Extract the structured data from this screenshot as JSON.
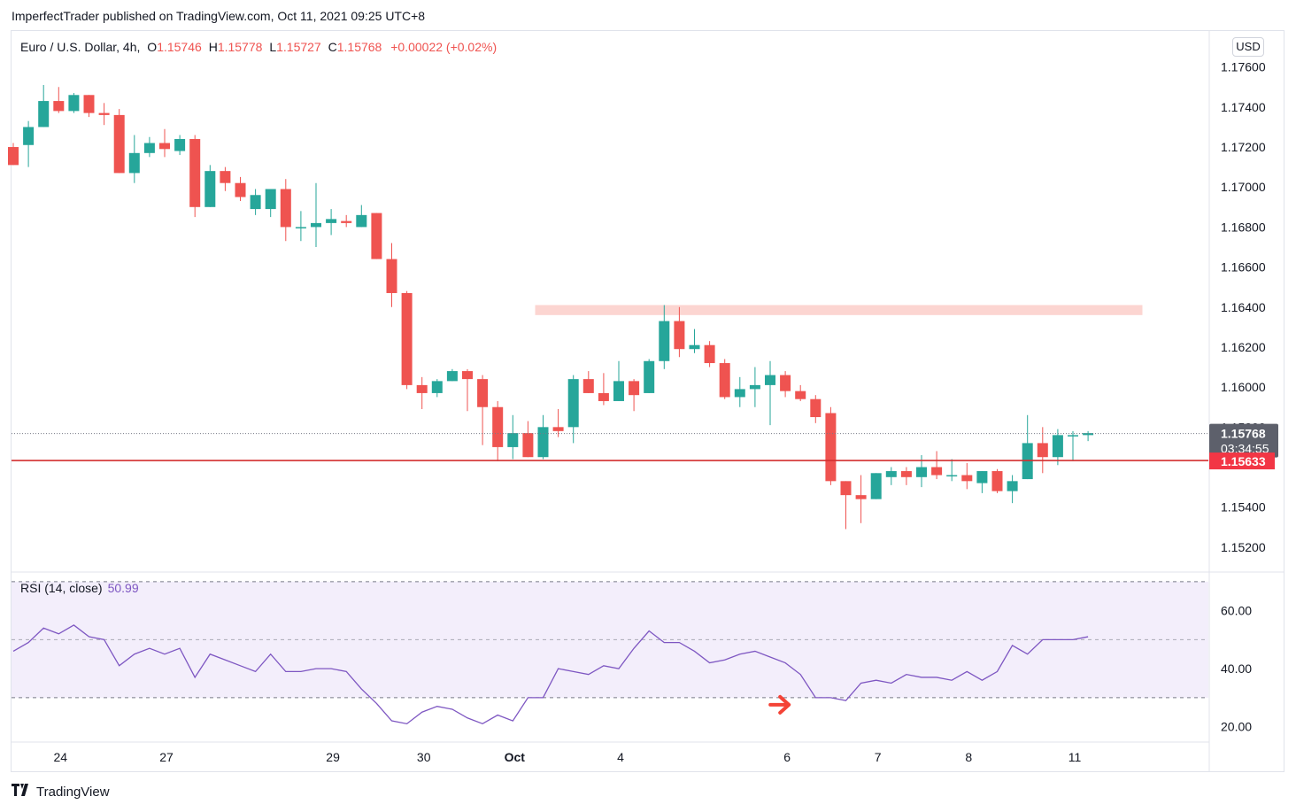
{
  "header": {
    "publisher_line": "ImperfectTrader published on TradingView.com, Oct 11, 2021 09:25 UTC+8"
  },
  "legend": {
    "symbol": "Euro / U.S. Dollar, 4h,",
    "open_label": "O",
    "open": "1.15746",
    "high_label": "H",
    "high": "1.15778",
    "low_label": "L",
    "low": "1.15727",
    "close_label": "C",
    "close": "1.15768",
    "change": "+0.00022 (+0.02%)"
  },
  "currency": "USD",
  "price_tags": {
    "last_price": "1.15768",
    "countdown": "03:34:55",
    "level": "1.15633",
    "hidden_tick": "1.15800"
  },
  "rsi_legend": {
    "label": "RSI (14, close)",
    "value": "50.99"
  },
  "footer": {
    "brand": "TradingView"
  },
  "colors": {
    "up": "#26a69a",
    "down": "#ef5350",
    "rsi": "#7e57c2",
    "rsi_band": "#f3eefb",
    "resistance_zone": "#fcd5d1",
    "support_line": "#d32f2f",
    "arrow": "#f44336"
  },
  "chart_data": [
    {
      "type": "candlestick",
      "title": "Euro / U.S. Dollar, 4h",
      "ylim": [
        1.1508,
        1.1778
      ],
      "y_ticks": [
        "1.17600",
        "1.17400",
        "1.17200",
        "1.17000",
        "1.16800",
        "1.16600",
        "1.16400",
        "1.16200",
        "1.16000",
        "1.15400",
        "1.15200"
      ],
      "x_ticks": [
        {
          "label": "24",
          "index": 3
        },
        {
          "label": "27",
          "index": 10
        },
        {
          "label": "29",
          "index": 21
        },
        {
          "label": "30",
          "index": 27
        },
        {
          "label": "Oct",
          "index": 33
        },
        {
          "label": "4",
          "index": 40
        },
        {
          "label": "6",
          "index": 51
        },
        {
          "label": "7",
          "index": 57
        },
        {
          "label": "8",
          "index": 63
        },
        {
          "label": "11",
          "index": 70
        }
      ],
      "candles": [
        {
          "o": 1.172,
          "h": 1.1722,
          "l": 1.1711,
          "c": 1.1711
        },
        {
          "o": 1.1721,
          "h": 1.1733,
          "l": 1.171,
          "c": 1.173
        },
        {
          "o": 1.173,
          "h": 1.1751,
          "l": 1.173,
          "c": 1.1743
        },
        {
          "o": 1.1743,
          "h": 1.175,
          "l": 1.1737,
          "c": 1.1738
        },
        {
          "o": 1.1738,
          "h": 1.1747,
          "l": 1.1737,
          "c": 1.1746
        },
        {
          "o": 1.1746,
          "h": 1.1746,
          "l": 1.1735,
          "c": 1.1737
        },
        {
          "o": 1.1737,
          "h": 1.1742,
          "l": 1.1731,
          "c": 1.1736
        },
        {
          "o": 1.1736,
          "h": 1.1739,
          "l": 1.1707,
          "c": 1.1707
        },
        {
          "o": 1.1707,
          "h": 1.1726,
          "l": 1.1702,
          "c": 1.1717
        },
        {
          "o": 1.1717,
          "h": 1.1725,
          "l": 1.1715,
          "c": 1.1722
        },
        {
          "o": 1.1722,
          "h": 1.1729,
          "l": 1.1715,
          "c": 1.1719
        },
        {
          "o": 1.1718,
          "h": 1.1726,
          "l": 1.1716,
          "c": 1.1724
        },
        {
          "o": 1.1724,
          "h": 1.1726,
          "l": 1.1685,
          "c": 1.169
        },
        {
          "o": 1.169,
          "h": 1.1711,
          "l": 1.169,
          "c": 1.1708
        },
        {
          "o": 1.1708,
          "h": 1.171,
          "l": 1.1698,
          "c": 1.1702
        },
        {
          "o": 1.1702,
          "h": 1.1705,
          "l": 1.1693,
          "c": 1.1695
        },
        {
          "o": 1.1689,
          "h": 1.1699,
          "l": 1.1686,
          "c": 1.1696
        },
        {
          "o": 1.1689,
          "h": 1.1698,
          "l": 1.1685,
          "c": 1.1699
        },
        {
          "o": 1.1699,
          "h": 1.1704,
          "l": 1.1673,
          "c": 1.168
        },
        {
          "o": 1.168,
          "h": 1.1688,
          "l": 1.1673,
          "c": 1.168
        },
        {
          "o": 1.168,
          "h": 1.1702,
          "l": 1.167,
          "c": 1.1682
        },
        {
          "o": 1.1682,
          "h": 1.1689,
          "l": 1.1676,
          "c": 1.1684
        },
        {
          "o": 1.1683,
          "h": 1.1686,
          "l": 1.168,
          "c": 1.1682
        },
        {
          "o": 1.168,
          "h": 1.1691,
          "l": 1.168,
          "c": 1.1686
        },
        {
          "o": 1.1687,
          "h": 1.1687,
          "l": 1.1664,
          "c": 1.1664
        },
        {
          "o": 1.1664,
          "h": 1.1672,
          "l": 1.164,
          "c": 1.1647
        },
        {
          "o": 1.1647,
          "h": 1.1648,
          "l": 1.1599,
          "c": 1.1601
        },
        {
          "o": 1.1601,
          "h": 1.1605,
          "l": 1.1589,
          "c": 1.1597
        },
        {
          "o": 1.1597,
          "h": 1.1604,
          "l": 1.1595,
          "c": 1.1603
        },
        {
          "o": 1.1603,
          "h": 1.1609,
          "l": 1.1603,
          "c": 1.1608
        },
        {
          "o": 1.1608,
          "h": 1.1609,
          "l": 1.1588,
          "c": 1.1604
        },
        {
          "o": 1.1604,
          "h": 1.1606,
          "l": 1.1571,
          "c": 1.159
        },
        {
          "o": 1.159,
          "h": 1.1593,
          "l": 1.1563,
          "c": 1.157
        },
        {
          "o": 1.157,
          "h": 1.1586,
          "l": 1.1564,
          "c": 1.1577
        },
        {
          "o": 1.1577,
          "h": 1.1583,
          "l": 1.1565,
          "c": 1.1565
        },
        {
          "o": 1.1565,
          "h": 1.1586,
          "l": 1.1564,
          "c": 1.158
        },
        {
          "o": 1.158,
          "h": 1.1589,
          "l": 1.1575,
          "c": 1.1578
        },
        {
          "o": 1.158,
          "h": 1.1606,
          "l": 1.1572,
          "c": 1.1604
        },
        {
          "o": 1.1604,
          "h": 1.1608,
          "l": 1.1597,
          "c": 1.1597
        },
        {
          "o": 1.1597,
          "h": 1.1607,
          "l": 1.1591,
          "c": 1.1593
        },
        {
          "o": 1.1593,
          "h": 1.1613,
          "l": 1.1593,
          "c": 1.1603
        },
        {
          "o": 1.1603,
          "h": 1.1604,
          "l": 1.1588,
          "c": 1.1596
        },
        {
          "o": 1.1597,
          "h": 1.1614,
          "l": 1.1597,
          "c": 1.1613
        },
        {
          "o": 1.1613,
          "h": 1.1641,
          "l": 1.1609,
          "c": 1.1633
        },
        {
          "o": 1.1633,
          "h": 1.164,
          "l": 1.1615,
          "c": 1.1619
        },
        {
          "o": 1.1619,
          "h": 1.1629,
          "l": 1.1617,
          "c": 1.1621
        },
        {
          "o": 1.1621,
          "h": 1.1623,
          "l": 1.161,
          "c": 1.1612
        },
        {
          "o": 1.1612,
          "h": 1.1614,
          "l": 1.1594,
          "c": 1.1595
        },
        {
          "o": 1.1595,
          "h": 1.1605,
          "l": 1.159,
          "c": 1.1599
        },
        {
          "o": 1.1599,
          "h": 1.161,
          "l": 1.159,
          "c": 1.1601
        },
        {
          "o": 1.1601,
          "h": 1.1613,
          "l": 1.1581,
          "c": 1.1606
        },
        {
          "o": 1.1606,
          "h": 1.1608,
          "l": 1.1595,
          "c": 1.1598
        },
        {
          "o": 1.1598,
          "h": 1.1601,
          "l": 1.1593,
          "c": 1.1594
        },
        {
          "o": 1.1594,
          "h": 1.1596,
          "l": 1.1582,
          "c": 1.1585
        },
        {
          "o": 1.1587,
          "h": 1.159,
          "l": 1.1551,
          "c": 1.1553
        },
        {
          "o": 1.1553,
          "h": 1.1553,
          "l": 1.1529,
          "c": 1.1546
        },
        {
          "o": 1.1546,
          "h": 1.1556,
          "l": 1.1532,
          "c": 1.1544
        },
        {
          "o": 1.1544,
          "h": 1.1557,
          "l": 1.1544,
          "c": 1.1557
        },
        {
          "o": 1.1555,
          "h": 1.156,
          "l": 1.1551,
          "c": 1.1558
        },
        {
          "o": 1.1558,
          "h": 1.156,
          "l": 1.1551,
          "c": 1.1555
        },
        {
          "o": 1.1555,
          "h": 1.1566,
          "l": 1.155,
          "c": 1.156
        },
        {
          "o": 1.156,
          "h": 1.1568,
          "l": 1.1554,
          "c": 1.1556
        },
        {
          "o": 1.1556,
          "h": 1.1564,
          "l": 1.1553,
          "c": 1.1556
        },
        {
          "o": 1.1556,
          "h": 1.1562,
          "l": 1.1549,
          "c": 1.1553
        },
        {
          "o": 1.1552,
          "h": 1.1558,
          "l": 1.1547,
          "c": 1.1558
        },
        {
          "o": 1.1558,
          "h": 1.1559,
          "l": 1.1547,
          "c": 1.1548
        },
        {
          "o": 1.1548,
          "h": 1.1556,
          "l": 1.1542,
          "c": 1.1553
        },
        {
          "o": 1.1554,
          "h": 1.1586,
          "l": 1.1554,
          "c": 1.1572
        },
        {
          "o": 1.1572,
          "h": 1.158,
          "l": 1.1557,
          "c": 1.1565
        },
        {
          "o": 1.1565,
          "h": 1.1579,
          "l": 1.1561,
          "c": 1.1576
        },
        {
          "o": 1.1576,
          "h": 1.1578,
          "l": 1.1563,
          "c": 1.1576
        },
        {
          "o": 1.1576,
          "h": 1.1578,
          "l": 1.1573,
          "c": 1.1577
        }
      ],
      "resistance_zone": {
        "from_index": 35,
        "to_index": 75,
        "low": 1.1636,
        "high": 1.1641
      },
      "support_level": 1.15633,
      "last_price": 1.15768
    },
    {
      "type": "line",
      "title": "RSI (14, close)",
      "ylim": [
        15,
        73
      ],
      "y_ticks": [
        "60.00",
        "40.00",
        "20.00"
      ],
      "bands": {
        "upper": 70,
        "middle": 50,
        "lower": 30
      },
      "arrow_at_index": 52,
      "values": [
        46,
        49,
        54,
        52,
        55,
        51,
        50,
        41,
        45,
        47,
        45,
        47,
        37,
        45,
        43,
        41,
        39,
        45,
        39,
        39,
        40,
        40,
        39,
        33,
        28,
        22,
        21,
        25,
        27,
        26,
        23,
        21,
        24,
        22,
        30,
        30,
        40,
        39,
        38,
        41,
        40,
        47,
        53,
        49,
        49,
        46,
        42,
        43,
        45,
        46,
        44,
        42,
        38,
        30,
        30,
        29,
        35,
        36,
        35,
        38,
        37,
        37,
        36,
        39,
        36,
        39,
        48,
        45,
        50,
        50,
        50,
        51
      ]
    }
  ]
}
